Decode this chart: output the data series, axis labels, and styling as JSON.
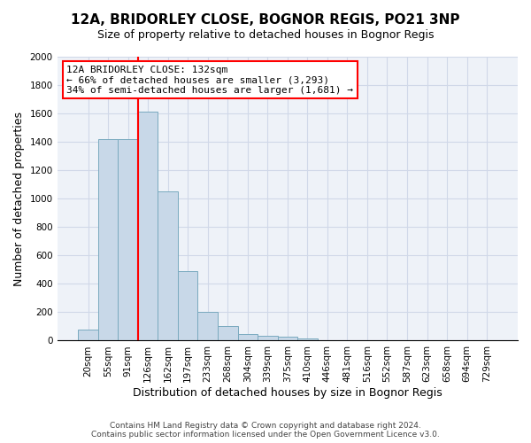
{
  "title": "12A, BRIDORLEY CLOSE, BOGNOR REGIS, PO21 3NP",
  "subtitle": "Size of property relative to detached houses in Bognor Regis",
  "xlabel": "Distribution of detached houses by size in Bognor Regis",
  "ylabel": "Number of detached properties",
  "bar_values": [
    80,
    1420,
    1420,
    1610,
    1050,
    490,
    205,
    105,
    45,
    35,
    25,
    15,
    0,
    0,
    0,
    0,
    0,
    0,
    0,
    0,
    0
  ],
  "bar_labels": [
    "20sqm",
    "55sqm",
    "91sqm",
    "126sqm",
    "162sqm",
    "197sqm",
    "233sqm",
    "268sqm",
    "304sqm",
    "339sqm",
    "375sqm",
    "410sqm",
    "446sqm",
    "481sqm",
    "516sqm",
    "552sqm",
    "587sqm",
    "623sqm",
    "658sqm",
    "694sqm",
    "729sqm"
  ],
  "bar_color": "#c8d8e8",
  "bar_edge_color": "#7aaabf",
  "annotation_box_text": "12A BRIDORLEY CLOSE: 132sqm\n← 66% of detached houses are smaller (3,293)\n34% of semi-detached houses are larger (1,681) →",
  "annotation_box_color": "white",
  "annotation_box_edge_color": "red",
  "vline_color": "red",
  "vline_x": 2.5,
  "ylim": [
    0,
    2000
  ],
  "yticks": [
    0,
    200,
    400,
    600,
    800,
    1000,
    1200,
    1400,
    1600,
    1800,
    2000
  ],
  "grid_color": "#d0d8e8",
  "background_color": "#eef2f8",
  "footnote": "Contains HM Land Registry data © Crown copyright and database right 2024.\nContains public sector information licensed under the Open Government Licence v3.0.",
  "title_fontsize": 11,
  "subtitle_fontsize": 9,
  "xlabel_fontsize": 9,
  "ylabel_fontsize": 9,
  "tick_fontsize": 7.5,
  "annotation_fontsize": 8
}
